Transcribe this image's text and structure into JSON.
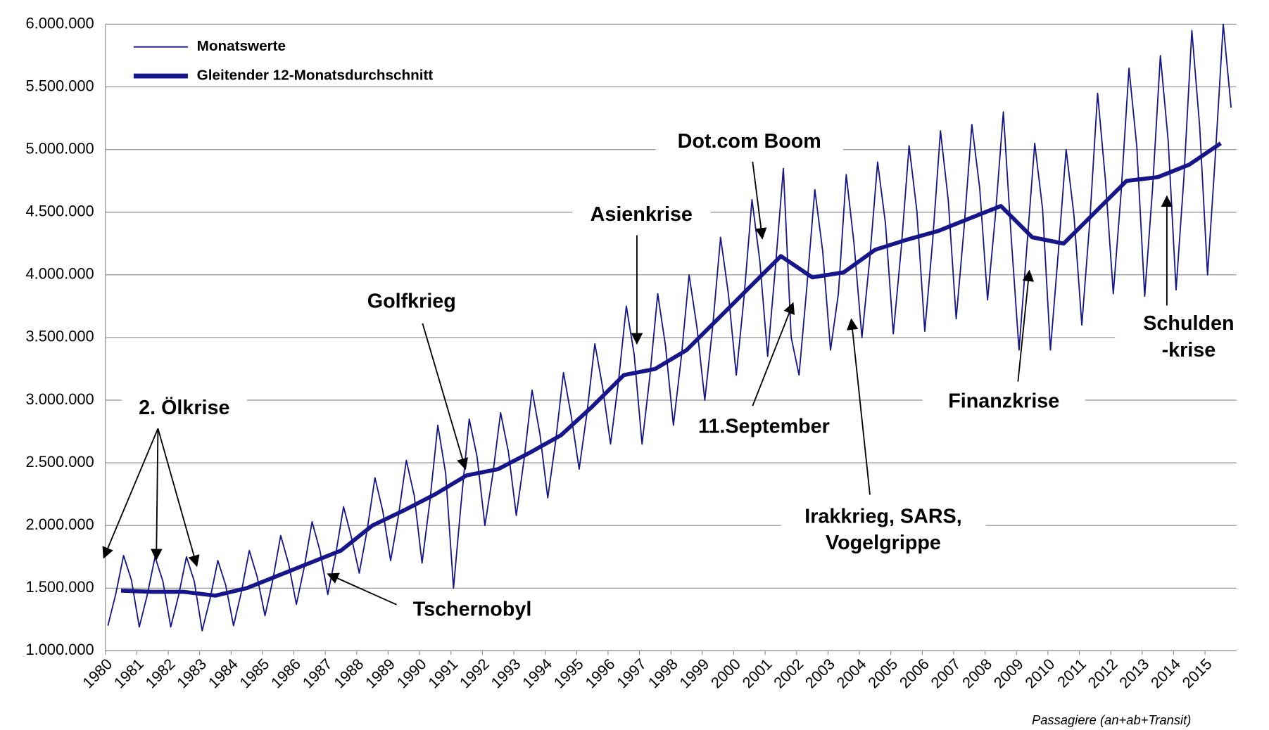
{
  "chart_data": {
    "type": "line",
    "footnote": "Passagiere (an+ab+Transit)",
    "xlim": [
      1980,
      2016
    ],
    "xticks": [
      1980,
      1981,
      1982,
      1983,
      1984,
      1985,
      1986,
      1987,
      1988,
      1989,
      1990,
      1991,
      1992,
      1993,
      1994,
      1995,
      1996,
      1997,
      1998,
      1999,
      2000,
      2001,
      2002,
      2003,
      2004,
      2005,
      2006,
      2007,
      2008,
      2009,
      2010,
      2011,
      2012,
      2013,
      2014,
      2015
    ],
    "ylim": [
      1000000,
      6000000
    ],
    "yticks": [
      {
        "value": 1000000,
        "label": "1.000.000"
      },
      {
        "value": 1500000,
        "label": "1.500.000"
      },
      {
        "value": 2000000,
        "label": "2.000.000"
      },
      {
        "value": 2500000,
        "label": "2.500.000"
      },
      {
        "value": 3000000,
        "label": "3.000.000"
      },
      {
        "value": 3500000,
        "label": "3.500.000"
      },
      {
        "value": 4000000,
        "label": "4.000.000"
      },
      {
        "value": 4500000,
        "label": "4.500.000"
      },
      {
        "value": 5000000,
        "label": "5.000.000"
      },
      {
        "value": 5500000,
        "label": "5.500.000"
      },
      {
        "value": 6000000,
        "label": "6.000.000"
      }
    ],
    "grid": true,
    "legend": "top-left",
    "x": [
      1980.08,
      1980.33,
      1980.58,
      1980.83,
      1981.08,
      1981.33,
      1981.58,
      1981.83,
      1982.08,
      1982.33,
      1982.58,
      1982.83,
      1983.08,
      1983.33,
      1983.58,
      1983.83,
      1984.08,
      1984.33,
      1984.58,
      1984.83,
      1985.08,
      1985.33,
      1985.58,
      1985.83,
      1986.08,
      1986.33,
      1986.58,
      1986.83,
      1987.08,
      1987.33,
      1987.58,
      1987.83,
      1988.08,
      1988.33,
      1988.58,
      1988.83,
      1989.08,
      1989.33,
      1989.58,
      1989.83,
      1990.08,
      1990.33,
      1990.58,
      1990.83,
      1991.08,
      1991.33,
      1991.58,
      1991.83,
      1992.08,
      1992.33,
      1992.58,
      1992.83,
      1993.08,
      1993.33,
      1993.58,
      1993.83,
      1994.08,
      1994.33,
      1994.58,
      1994.83,
      1995.08,
      1995.33,
      1995.58,
      1995.83,
      1996.08,
      1996.33,
      1996.58,
      1996.83,
      1997.08,
      1997.33,
      1997.58,
      1997.83,
      1998.08,
      1998.33,
      1998.58,
      1998.83,
      1999.08,
      1999.33,
      1999.58,
      1999.83,
      2000.08,
      2000.33,
      2000.58,
      2000.83,
      2001.08,
      2001.33,
      2001.58,
      2001.83,
      2002.08,
      2002.33,
      2002.58,
      2002.83,
      2003.08,
      2003.33,
      2003.58,
      2003.83,
      2004.08,
      2004.33,
      2004.58,
      2004.83,
      2005.08,
      2005.33,
      2005.58,
      2005.83,
      2006.08,
      2006.33,
      2006.58,
      2006.83,
      2007.08,
      2007.33,
      2007.58,
      2007.83,
      2008.08,
      2008.33,
      2008.58,
      2008.83,
      2009.08,
      2009.33,
      2009.58,
      2009.83,
      2010.08,
      2010.33,
      2010.58,
      2010.83,
      2011.08,
      2011.33,
      2011.58,
      2011.83,
      2012.08,
      2012.33,
      2012.58,
      2012.83,
      2013.08,
      2013.33,
      2013.58,
      2013.83,
      2014.08,
      2014.33,
      2014.58,
      2014.83,
      2015.08,
      2015.33,
      2015.58,
      2015.83
    ],
    "series": [
      {
        "name": "Monatswerte",
        "color": "#16168a",
        "values": [
          1200000,
          1452000,
          1760000,
          1564000,
          1190000,
          1442000,
          1750000,
          1554000,
          1190000,
          1442000,
          1750000,
          1554000,
          1160000,
          1412000,
          1720000,
          1524000,
          1200000,
          1470000,
          1800000,
          1590000,
          1280000,
          1568000,
          1920000,
          1696000,
          1370000,
          1667000,
          2030000,
          1799000,
          1450000,
          1765000,
          2150000,
          1905000,
          1620000,
          1962000,
          2380000,
          2114000,
          1720000,
          2080000,
          2520000,
          2240000,
          1700000,
          2195000,
          2800000,
          2415000,
          1500000,
          2200000,
          2850000,
          2550000,
          2000000,
          2405000,
          2900000,
          2585000,
          2080000,
          2530000,
          3080000,
          2730000,
          2220000,
          2670000,
          3220000,
          2870000,
          2450000,
          2900000,
          3450000,
          3100000,
          2650000,
          3145000,
          3750000,
          3365000,
          2650000,
          3190000,
          3850000,
          3430000,
          2800000,
          3340000,
          4000000,
          3580000,
          3000000,
          3585000,
          4300000,
          3845000,
          3200000,
          3830000,
          4600000,
          4110000,
          3350000,
          4070000,
          4850000,
          3500000,
          3200000,
          3910000,
          4680000,
          4190000,
          3400000,
          3850000,
          4800000,
          4245000,
          3500000,
          4130000,
          4900000,
          4410000,
          3530000,
          4205000,
          5030000,
          4505000,
          3550000,
          4270000,
          5150000,
          4590000,
          3650000,
          4370000,
          5200000,
          4690000,
          3800000,
          4475000,
          5300000,
          4300000,
          3400000,
          4225000,
          5050000,
          4525000,
          3400000,
          4175000,
          5000000,
          4475000,
          3600000,
          4415000,
          5450000,
          4755000,
          3850000,
          4660000,
          5650000,
          5020000,
          3830000,
          4685000,
          5750000,
          5065000,
          3880000,
          4780000,
          5950000,
          5180000,
          4000000,
          4955000,
          6000000,
          5335000
        ]
      },
      {
        "name": "Gleitender 12-Monatsdurchschnitt",
        "color": "#16168a",
        "x": [
          1980.5,
          1981.5,
          1982.5,
          1983.5,
          1984.5,
          1985.5,
          1986.5,
          1987.5,
          1988.5,
          1989.5,
          1990.5,
          1991.5,
          1992.5,
          1993.5,
          1994.5,
          1995.5,
          1996.5,
          1997.5,
          1998.5,
          1999.5,
          2000.5,
          2001.5,
          2002.5,
          2003.5,
          2004.5,
          2005.5,
          2006.5,
          2007.5,
          2008.5,
          2009.5,
          2010.5,
          2011.5,
          2012.5,
          2013.5,
          2014.5,
          2015.5
        ],
        "values": [
          1480000,
          1470000,
          1470000,
          1440000,
          1500000,
          1600000,
          1700000,
          1800000,
          2000000,
          2120000,
          2250000,
          2400000,
          2450000,
          2580000,
          2720000,
          2950000,
          3200000,
          3250000,
          3400000,
          3650000,
          3900000,
          4150000,
          3980000,
          4020000,
          4200000,
          4280000,
          4350000,
          4450000,
          4550000,
          4300000,
          4250000,
          4500000,
          4750000,
          4780000,
          4880000,
          5050000
        ]
      }
    ],
    "annotations": [
      {
        "lines": [
          "2. Ölkrise"
        ]
      },
      {
        "lines": [
          "Golfkrieg"
        ]
      },
      {
        "lines": [
          "Tschernobyl"
        ]
      },
      {
        "lines": [
          "Asienkrise"
        ]
      },
      {
        "lines": [
          "Dot.com Boom"
        ]
      },
      {
        "lines": [
          "11.September"
        ]
      },
      {
        "lines": [
          "Irakkrieg, SARS,",
          "Vogelgrippe"
        ]
      },
      {
        "lines": [
          "Finanzkrise"
        ]
      },
      {
        "lines": [
          "Schulden",
          "-krise"
        ]
      }
    ]
  }
}
